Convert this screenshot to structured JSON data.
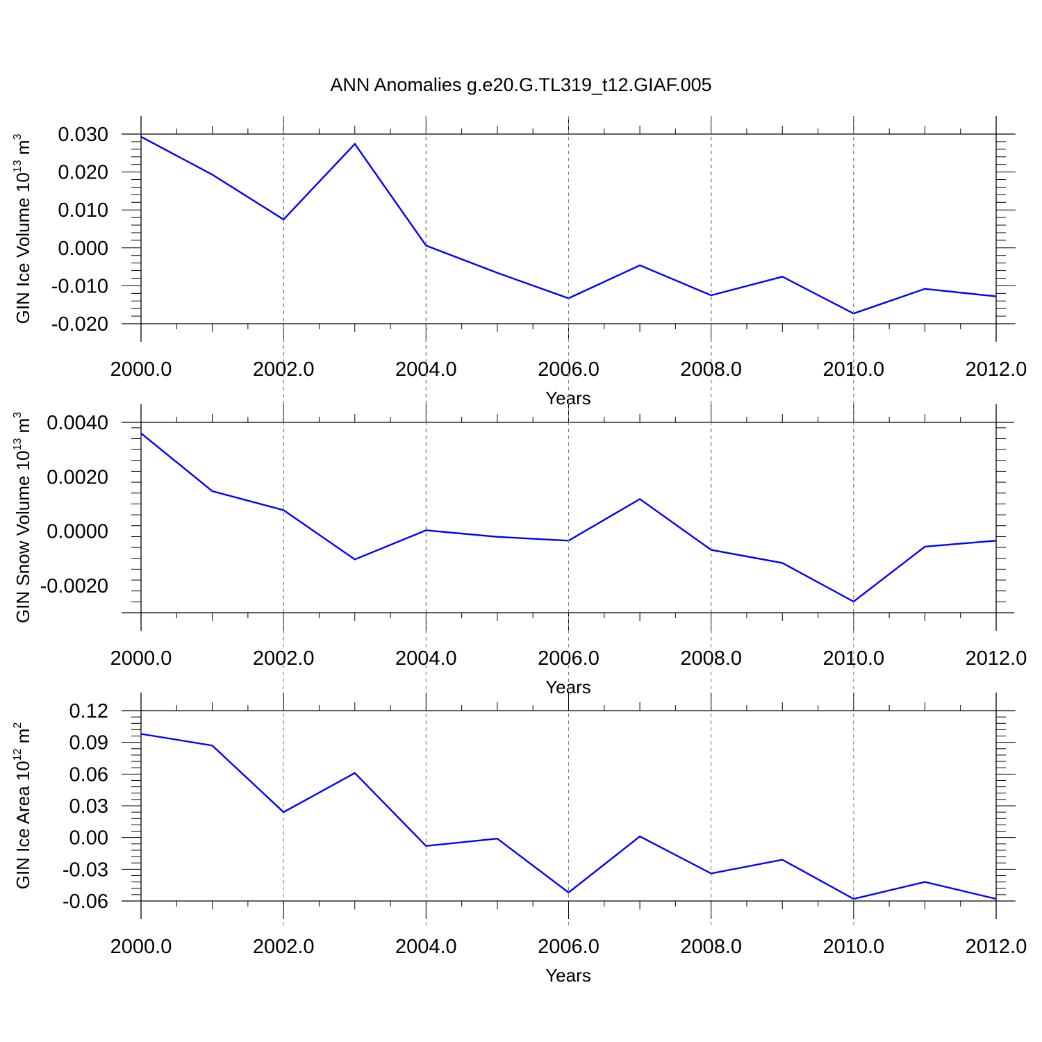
{
  "figure": {
    "title": "ANN Anomalies g.e20.G.TL319_t12.GIAF.005",
    "line_color": "#0000ff"
  },
  "chart_data": [
    {
      "type": "line",
      "xlabel": "Years",
      "ylabel_base": "GIN Ice Volume 10",
      "ylabel_exp": "13",
      "ylabel_unit": " m",
      "ylabel_unit_exp": "3",
      "xlim": [
        2000,
        2012
      ],
      "ylim": [
        -0.02,
        0.03
      ],
      "xticks": [
        2000,
        2002,
        2004,
        2006,
        2008,
        2010,
        2012
      ],
      "xtick_labels": [
        "2000.0",
        "2002.0",
        "2004.0",
        "2006.0",
        "2008.0",
        "2010.0",
        "2012.0"
      ],
      "yticks": [
        -0.02,
        -0.01,
        0.0,
        0.01,
        0.02,
        0.03
      ],
      "ytick_labels": [
        "-0.020",
        "-0.010",
        "0.000",
        "0.010",
        "0.020",
        "0.030"
      ],
      "x": [
        2000,
        2001,
        2002,
        2003,
        2004,
        2005,
        2006,
        2007,
        2008,
        2009,
        2010,
        2011,
        2012
      ],
      "values": [
        0.0293,
        0.0193,
        0.0075,
        0.0274,
        0.0006,
        -0.0066,
        -0.0133,
        -0.0046,
        -0.0125,
        -0.0076,
        -0.0173,
        -0.0108,
        -0.0128
      ],
      "grid": "vertical dashed"
    },
    {
      "type": "line",
      "xlabel": "Years",
      "ylabel_base": "GIN Snow Volume 10",
      "ylabel_exp": "13",
      "ylabel_unit": " m",
      "ylabel_unit_exp": "3",
      "xlim": [
        2000,
        2012
      ],
      "ylim": [
        -0.003,
        0.004
      ],
      "xticks": [
        2000,
        2002,
        2004,
        2006,
        2008,
        2010,
        2012
      ],
      "xtick_labels": [
        "2000.0",
        "2002.0",
        "2004.0",
        "2006.0",
        "2008.0",
        "2010.0",
        "2012.0"
      ],
      "yticks": [
        -0.002,
        0.0,
        0.002,
        0.004
      ],
      "ytick_labels": [
        "-0.0020",
        "0.0000",
        "0.0020",
        "0.0040"
      ],
      "x": [
        2000,
        2001,
        2002,
        2003,
        2004,
        2005,
        2006,
        2007,
        2008,
        2009,
        2010,
        2011,
        2012
      ],
      "values": [
        0.0036,
        0.00147,
        0.00077,
        -0.00104,
        3e-05,
        -0.00021,
        -0.00035,
        0.00118,
        -0.00069,
        -0.00117,
        -0.00259,
        -0.00057,
        -0.00035
      ],
      "grid": "vertical dashed"
    },
    {
      "type": "line",
      "xlabel": "Years",
      "ylabel_base": "GIN Ice Area 10",
      "ylabel_exp": "12",
      "ylabel_unit": " m",
      "ylabel_unit_exp": "2",
      "xlim": [
        2000,
        2012
      ],
      "ylim": [
        -0.06,
        0.12
      ],
      "xticks": [
        2000,
        2002,
        2004,
        2006,
        2008,
        2010,
        2012
      ],
      "xtick_labels": [
        "2000.0",
        "2002.0",
        "2004.0",
        "2006.0",
        "2008.0",
        "2010.0",
        "2012.0"
      ],
      "yticks": [
        -0.06,
        -0.03,
        0.0,
        0.03,
        0.06,
        0.09,
        0.12
      ],
      "ytick_labels": [
        "-0.06",
        "-0.03",
        "0.00",
        "0.03",
        "0.06",
        "0.09",
        "0.12"
      ],
      "x": [
        2000,
        2001,
        2002,
        2003,
        2004,
        2005,
        2006,
        2007,
        2008,
        2009,
        2010,
        2011,
        2012
      ],
      "values": [
        0.098,
        0.087,
        0.024,
        0.061,
        -0.008,
        -0.001,
        -0.052,
        0.001,
        -0.034,
        -0.021,
        -0.058,
        -0.042,
        -0.058
      ],
      "grid": "vertical dashed"
    }
  ]
}
